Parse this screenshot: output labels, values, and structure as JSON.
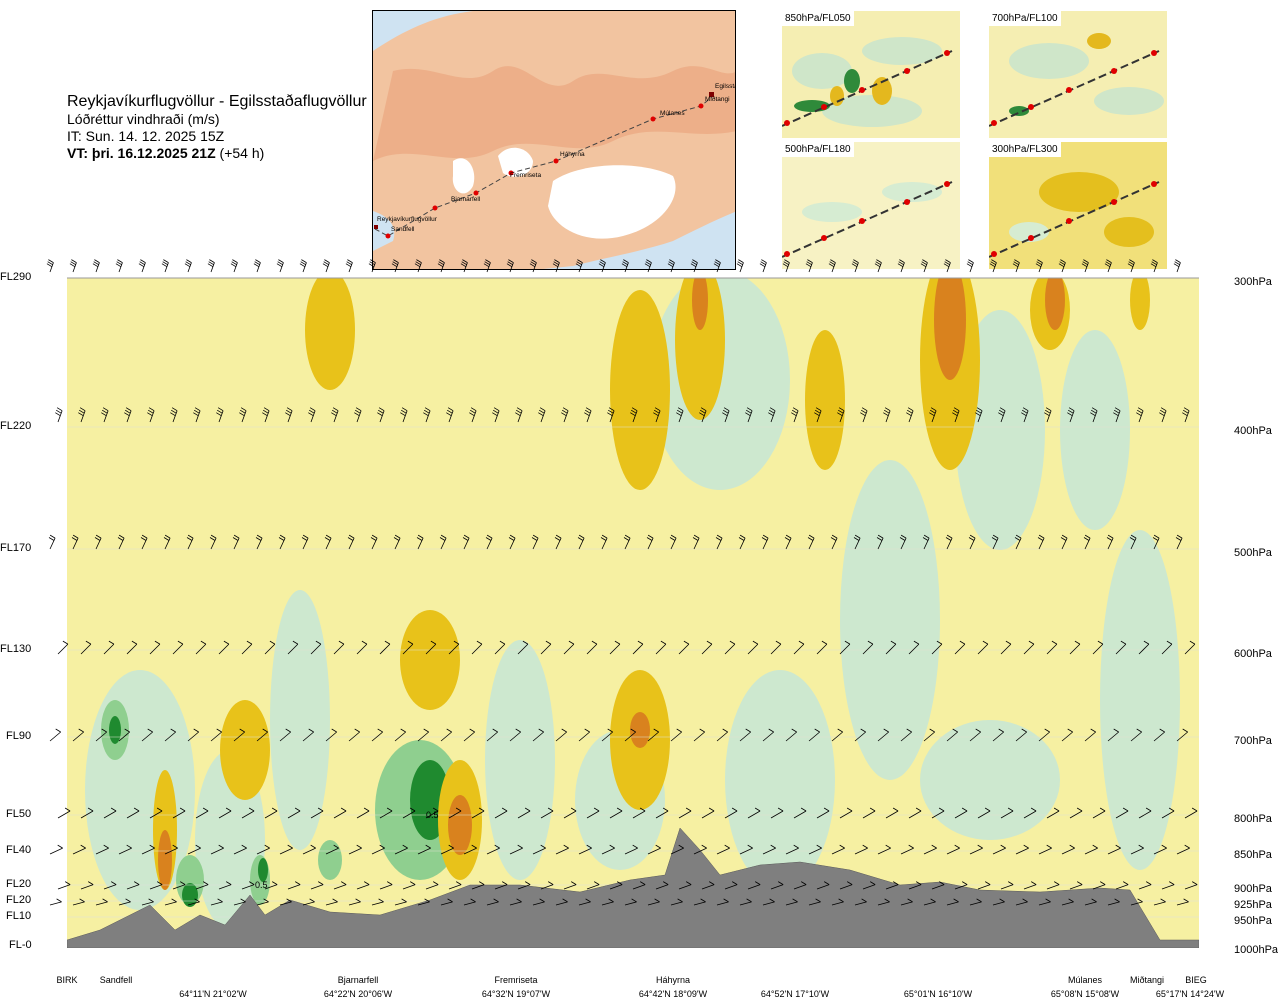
{
  "header": {
    "route": "Reykjavíkurflugvöllur - Egilsstaðaflugvöllur",
    "variable": "Lóðréttur vindhraði (m/s)",
    "issue_time": "IT: Sun. 14. 12. 2025 15Z",
    "valid_time": "VT: þri. 16.12.2025 21Z",
    "lead_time": "(+54 h)"
  },
  "map": {
    "points": [
      "Reykjavíkurflugvöllur",
      "Sandfell",
      "Bjarnarfell",
      "Fremriseta",
      "Háhyrna",
      "Múlanes",
      "Miðtangi",
      "Egilsstaðir"
    ]
  },
  "thumbnails": [
    {
      "label": "850hPa/FL050"
    },
    {
      "label": "700hPa/FL100"
    },
    {
      "label": "500hPa/FL180"
    },
    {
      "label": "300hPa/FL300"
    }
  ],
  "chart_data": {
    "type": "heatmap",
    "variable": "Lóðréttur vindhraði (m/s)",
    "left_levels": [
      "FL290",
      "FL220",
      "FL170",
      "FL130",
      "FL90",
      "FL50",
      "FL40",
      "FL20",
      "FL20",
      "FL10",
      "FL-0"
    ],
    "right_levels": [
      "300hPa",
      "400hPa",
      "500hPa",
      "600hPa",
      "700hPa",
      "800hPa",
      "850hPa",
      "900hPa",
      "925hPa",
      "950hPa",
      "1000hPa"
    ],
    "pressure_hpa": [
      300,
      400,
      500,
      600,
      700,
      800,
      850,
      900,
      925,
      950,
      1000
    ],
    "locations": [
      {
        "name": "BIRK",
        "coord": ""
      },
      {
        "name": "Sandfell",
        "coord": ""
      },
      {
        "name": "",
        "coord": "64°11'N 21°02'W"
      },
      {
        "name": "Bjarnarfell",
        "coord": "64°22'N 20°06'W"
      },
      {
        "name": "Fremriseta",
        "coord": "64°32'N 19°07'W"
      },
      {
        "name": "Háhyrna",
        "coord": "64°42'N 18°09'W"
      },
      {
        "name": "",
        "coord": "64°52'N 17°10'W"
      },
      {
        "name": "",
        "coord": "65°01'N 16°10'W"
      },
      {
        "name": "Múlanes",
        "coord": "65°08'N 15°08'W"
      },
      {
        "name": "Miðtangi",
        "coord": ""
      },
      {
        "name": "BIEG",
        "coord": "65°17'N 14°24'W"
      }
    ],
    "annotations": [
      "0.5",
      "0.5"
    ],
    "color_scale": {
      "strong_down": "#d9821e",
      "down": "#e8c21a",
      "weak_down": "#f6f0a2",
      "weak_up": "#cde8cf",
      "up": "#8fcf8f",
      "strong_up": "#1f8a2f",
      "terrain": "#7f7f7f"
    }
  }
}
